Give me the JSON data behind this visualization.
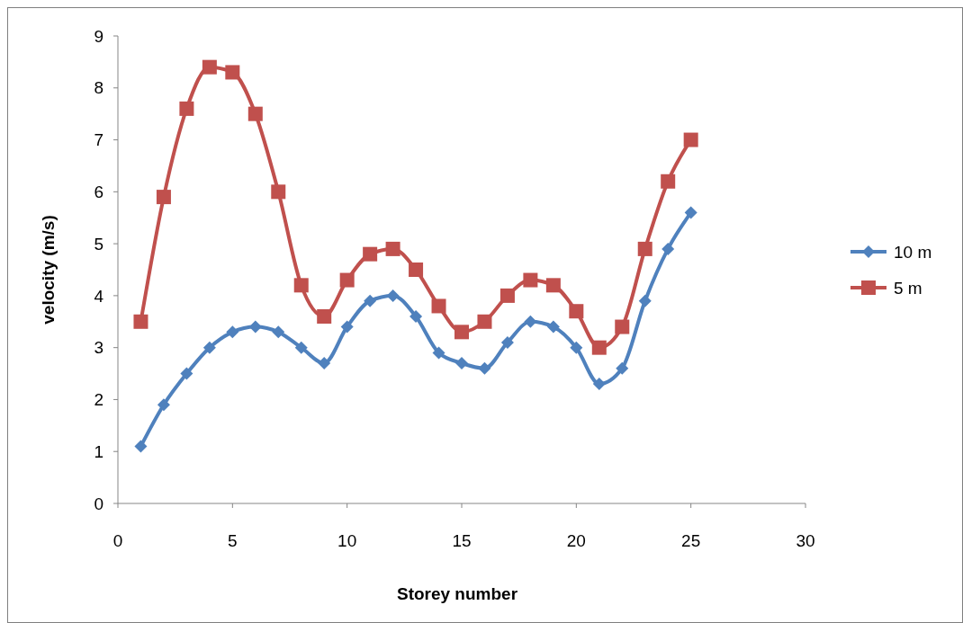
{
  "chart_data": {
    "type": "line",
    "xlabel": "Storey number",
    "ylabel": "velocity (m/s)",
    "x": [
      1,
      2,
      3,
      4,
      5,
      6,
      7,
      8,
      9,
      10,
      11,
      12,
      13,
      14,
      15,
      16,
      17,
      18,
      19,
      20,
      21,
      22,
      23,
      24,
      25
    ],
    "series": [
      {
        "name": "10 m",
        "color": "#4f81bd",
        "marker": "diamond",
        "values": [
          1.1,
          1.9,
          2.5,
          3.0,
          3.3,
          3.4,
          3.3,
          3.0,
          2.7,
          3.4,
          3.9,
          4.0,
          3.6,
          2.9,
          2.7,
          2.6,
          3.1,
          3.5,
          3.4,
          3.0,
          2.3,
          2.6,
          3.9,
          4.9,
          5.6
        ]
      },
      {
        "name": "5 m",
        "color": "#c0504d",
        "marker": "square",
        "values": [
          3.5,
          5.9,
          7.6,
          8.4,
          8.3,
          7.5,
          6.0,
          4.2,
          3.6,
          4.3,
          4.8,
          4.9,
          4.5,
          3.8,
          3.3,
          3.5,
          4.0,
          4.3,
          4.2,
          3.7,
          3.0,
          3.4,
          4.9,
          6.2,
          7.0
        ]
      }
    ],
    "xlim": [
      0,
      30
    ],
    "xticks": [
      0,
      5,
      10,
      15,
      20,
      25,
      30
    ],
    "ylim": [
      0,
      9
    ],
    "yticks": [
      0,
      1,
      2,
      3,
      4,
      5,
      6,
      7,
      8,
      9
    ],
    "grid": false,
    "legend": "right",
    "line_style": "solid"
  }
}
